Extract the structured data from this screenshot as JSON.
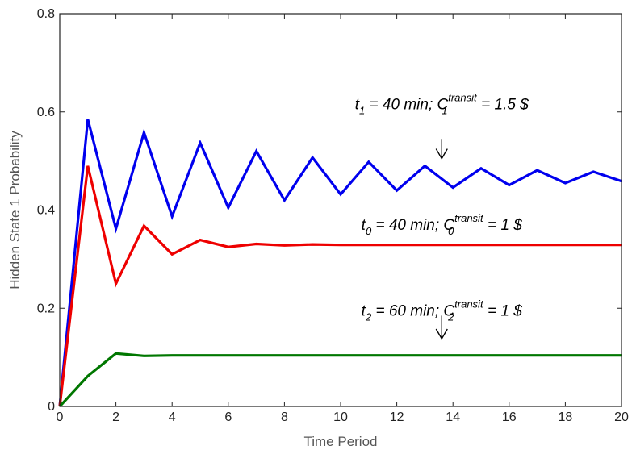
{
  "chart_data": {
    "type": "line",
    "title": "",
    "xlabel": "Time Period",
    "ylabel": "Hidden State 1 Probability",
    "xlim": [
      0,
      20
    ],
    "ylim": [
      0,
      0.8
    ],
    "x_ticks": [
      0,
      2,
      4,
      6,
      8,
      10,
      12,
      14,
      16,
      18,
      20
    ],
    "x_tick_labels": [
      "0",
      "2",
      "4",
      "6",
      "8",
      "10",
      "12",
      "14",
      "16",
      "18",
      "20"
    ],
    "y_ticks": [
      0,
      0.2,
      0.4,
      0.6,
      0.8
    ],
    "y_tick_labels": [
      "0",
      "0.2",
      "0.4",
      "0.6",
      "0.8"
    ],
    "grid": false,
    "x": [
      0,
      1,
      2,
      3,
      4,
      5,
      6,
      7,
      8,
      9,
      10,
      11,
      12,
      13,
      14,
      15,
      16,
      17,
      18,
      19,
      20
    ],
    "series": [
      {
        "color": "#0000ee",
        "values": [
          0.0,
          0.585,
          0.362,
          0.558,
          0.387,
          0.537,
          0.405,
          0.52,
          0.42,
          0.507,
          0.432,
          0.498,
          0.44,
          0.49,
          0.446,
          0.485,
          0.451,
          0.481,
          0.455,
          0.478,
          0.459
        ]
      },
      {
        "color": "#ee0000",
        "values": [
          0.0,
          0.49,
          0.25,
          0.368,
          0.31,
          0.339,
          0.325,
          0.331,
          0.328,
          0.33,
          0.329,
          0.329,
          0.329,
          0.329,
          0.329,
          0.329,
          0.329,
          0.329,
          0.329,
          0.329,
          0.329
        ]
      },
      {
        "color": "#007700",
        "values": [
          0.0,
          0.062,
          0.108,
          0.103,
          0.104,
          0.104,
          0.104,
          0.104,
          0.104,
          0.104,
          0.104,
          0.104,
          0.104,
          0.104,
          0.104,
          0.104,
          0.104,
          0.104,
          0.104,
          0.104,
          0.104
        ]
      }
    ],
    "annotations": [
      {
        "x": 13.6,
        "y": 0.605,
        "t_text": "t",
        "t_sub": "1",
        "mid_text": " = 40 min; C",
        "c_sub": "1",
        "c_sup": "transit",
        "end_text": " = 1.5 $",
        "arrow": true,
        "arrow_from_y": 0.545,
        "arrow_to_y": 0.505
      },
      {
        "x": 13.6,
        "y": 0.36,
        "t_text": "t",
        "t_sub": "0",
        "mid_text": " = 40 min; C",
        "c_sub": "0",
        "c_sup": "transit",
        "end_text": " = 1 $",
        "arrow": false
      },
      {
        "x": 13.6,
        "y": 0.185,
        "t_text": "t",
        "t_sub": "2",
        "mid_text": " = 60 min; C",
        "c_sub": "2",
        "c_sup": "transit",
        "end_text": " = 1 $",
        "arrow": true,
        "arrow_from_y": 0.185,
        "arrow_to_y": 0.138
      }
    ]
  }
}
